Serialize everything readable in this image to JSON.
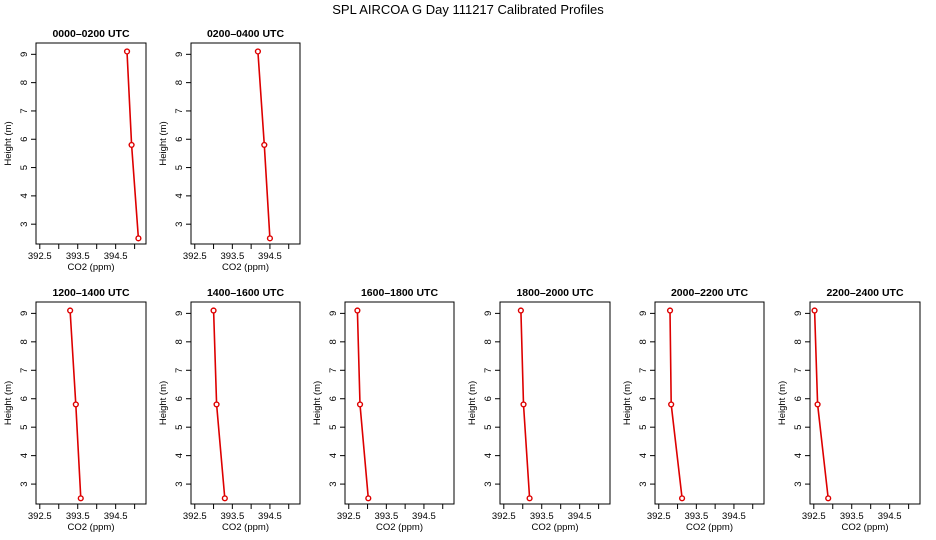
{
  "title": "SPL AIRCOA G  Day 111217  Calibrated Profiles",
  "chart_data": [
    {
      "type": "line",
      "title": "0000–0200 UTC",
      "xlabel": "CO2 (ppm)",
      "ylabel": "Height (m)",
      "xlim": [
        392.4,
        395.3
      ],
      "ylim": [
        2.3,
        9.4
      ],
      "xticks": [
        "392.5",
        "393.5",
        "394.5"
      ],
      "yticks": [
        "3",
        "4",
        "5",
        "6",
        "7",
        "8",
        "9"
      ],
      "x": [
        394.8,
        394.92,
        395.1
      ],
      "y": [
        9.1,
        5.8,
        2.5
      ],
      "color": "#dd0000"
    },
    {
      "type": "line",
      "title": "0200–0400 UTC",
      "xlabel": "CO2 (ppm)",
      "ylabel": "Height (m)",
      "xlim": [
        392.4,
        395.3
      ],
      "ylim": [
        2.3,
        9.4
      ],
      "xticks": [
        "392.5",
        "393.5",
        "394.5"
      ],
      "yticks": [
        "3",
        "4",
        "5",
        "6",
        "7",
        "8",
        "9"
      ],
      "x": [
        394.18,
        394.35,
        394.5
      ],
      "y": [
        9.1,
        5.8,
        2.5
      ],
      "color": "#dd0000"
    },
    {
      "type": "line",
      "title": "1200–1400 UTC",
      "xlabel": "CO2 (ppm)",
      "ylabel": "Height (m)",
      "xlim": [
        392.4,
        395.3
      ],
      "ylim": [
        2.3,
        9.4
      ],
      "xticks": [
        "392.5",
        "393.5",
        "394.5"
      ],
      "yticks": [
        "3",
        "4",
        "5",
        "6",
        "7",
        "8",
        "9"
      ],
      "x": [
        393.3,
        393.45,
        393.58
      ],
      "y": [
        9.1,
        5.8,
        2.5
      ],
      "color": "#dd0000"
    },
    {
      "type": "line",
      "title": "1400–1600 UTC",
      "xlabel": "CO2 (ppm)",
      "ylabel": "Height (m)",
      "xlim": [
        392.4,
        395.3
      ],
      "ylim": [
        2.3,
        9.4
      ],
      "xticks": [
        "392.5",
        "393.5",
        "394.5"
      ],
      "yticks": [
        "3",
        "4",
        "5",
        "6",
        "7",
        "8",
        "9"
      ],
      "x": [
        393.0,
        393.08,
        393.3
      ],
      "y": [
        9.1,
        5.8,
        2.5
      ],
      "color": "#dd0000"
    },
    {
      "type": "line",
      "title": "1600–1800 UTC",
      "xlabel": "CO2 (ppm)",
      "ylabel": "Height (m)",
      "xlim": [
        392.4,
        395.3
      ],
      "ylim": [
        2.3,
        9.4
      ],
      "xticks": [
        "392.5",
        "393.5",
        "394.5"
      ],
      "yticks": [
        "3",
        "4",
        "5",
        "6",
        "7",
        "8",
        "9"
      ],
      "x": [
        392.73,
        392.8,
        393.02
      ],
      "y": [
        9.1,
        5.8,
        2.5
      ],
      "color": "#dd0000"
    },
    {
      "type": "line",
      "title": "1800–2000 UTC",
      "xlabel": "CO2 (ppm)",
      "ylabel": "Height (m)",
      "xlim": [
        392.4,
        395.3
      ],
      "ylim": [
        2.3,
        9.4
      ],
      "xticks": [
        "392.5",
        "393.5",
        "394.5"
      ],
      "yticks": [
        "3",
        "4",
        "5",
        "6",
        "7",
        "8",
        "9"
      ],
      "x": [
        392.95,
        393.02,
        393.18
      ],
      "y": [
        9.1,
        5.8,
        2.5
      ],
      "color": "#dd0000"
    },
    {
      "type": "line",
      "title": "2000–2200 UTC",
      "xlabel": "CO2 (ppm)",
      "ylabel": "Height (m)",
      "xlim": [
        392.4,
        395.3
      ],
      "ylim": [
        2.3,
        9.4
      ],
      "xticks": [
        "392.5",
        "393.5",
        "394.5"
      ],
      "yticks": [
        "3",
        "4",
        "5",
        "6",
        "7",
        "8",
        "9"
      ],
      "x": [
        392.8,
        392.83,
        393.12
      ],
      "y": [
        9.1,
        5.8,
        2.5
      ],
      "color": "#dd0000"
    },
    {
      "type": "line",
      "title": "2200–2400 UTC",
      "xlabel": "CO2 (ppm)",
      "ylabel": "Height (m)",
      "xlim": [
        392.4,
        395.3
      ],
      "ylim": [
        2.3,
        9.4
      ],
      "xticks": [
        "392.5",
        "393.5",
        "394.5"
      ],
      "yticks": [
        "3",
        "4",
        "5",
        "6",
        "7",
        "8",
        "9"
      ],
      "x": [
        392.52,
        392.6,
        392.88
      ],
      "y": [
        9.1,
        5.8,
        2.5
      ],
      "color": "#dd0000"
    }
  ]
}
